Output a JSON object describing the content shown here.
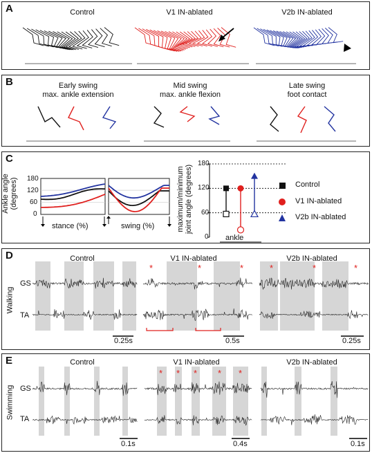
{
  "panel_a": {
    "letter": "A",
    "titles": [
      "Control",
      "V1 IN-ablated",
      "V2b IN-ablated"
    ],
    "colors": [
      "#111111",
      "#e0201e",
      "#2233a0"
    ]
  },
  "panel_b": {
    "letter": "B",
    "phases": [
      {
        "line1": "Early swing",
        "line2": "max. ankle extension"
      },
      {
        "line1": "Mid swing",
        "line2": "max. ankle flexion"
      },
      {
        "line1": "Late swing",
        "line2": "foot contact"
      }
    ]
  },
  "panel_c": {
    "letter": "C",
    "ylabel_line1": "Ankle angle",
    "ylabel_line2": "(degrees)",
    "yticks": [
      "180",
      "120",
      "60",
      "0"
    ],
    "stance_label": "stance (%)",
    "swing_label": "swing (%)",
    "right_ylabel_line1": "maximum/minimum",
    "right_ylabel_line2": "joint angle (degrees)",
    "right_xlabel": "ankle",
    "legend": [
      {
        "label": "Control",
        "color": "#111111",
        "marker": "square"
      },
      {
        "label": "V1 IN-ablated",
        "color": "#e0201e",
        "marker": "circle"
      },
      {
        "label": "V2b IN-ablated",
        "color": "#2233a0",
        "marker": "triangle"
      }
    ],
    "chart_data": {
      "type": "scatter",
      "ylabel": "maximum/minimum joint angle (degrees)",
      "xlabel": "ankle",
      "ylim": [
        0,
        180
      ],
      "yticks": [
        0,
        60,
        120,
        180
      ],
      "series": [
        {
          "name": "Control",
          "max": 120,
          "min": 57
        },
        {
          "name": "V1 IN-ablated",
          "max": 120,
          "min": 18
        },
        {
          "name": "V2b IN-ablated",
          "max": 150,
          "min": 57
        }
      ]
    }
  },
  "panel_d": {
    "letter": "D",
    "titles": [
      "Control",
      "V1 IN-ablated",
      "V2b IN-ablated"
    ],
    "side_label": "Walking",
    "row_labels": [
      "GS",
      "TA"
    ],
    "scales": [
      "0.25s",
      "0.5s",
      "0.25s"
    ],
    "star": "*"
  },
  "panel_e": {
    "letter": "E",
    "titles": [
      "Control",
      "V1 IN-ablated",
      "V2b IN-ablated"
    ],
    "side_label": "Swimming",
    "row_labels": [
      "GS",
      "TA"
    ],
    "scales": [
      "0.1s",
      "0.4s",
      "0.1s"
    ],
    "star": "*"
  }
}
